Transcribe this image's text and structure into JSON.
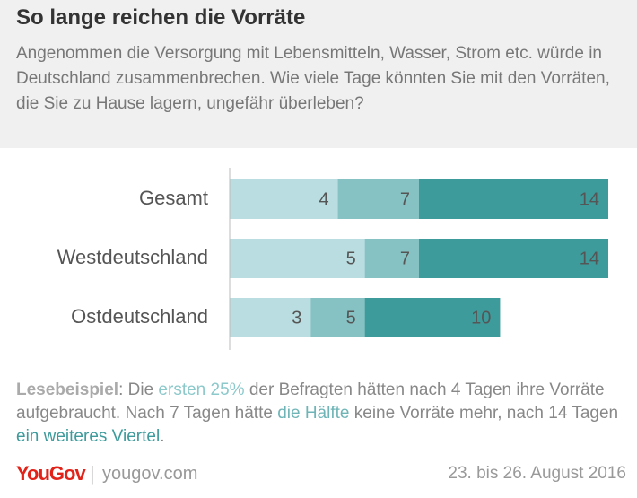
{
  "chart_data": {
    "type": "bar",
    "orientation": "horizontal",
    "overlap": true,
    "title": "So lange reichen die Vorräte",
    "subtitle": "Angenommen die Versorgung mit Lebensmitteln, Wasser, Strom etc. würde in Deutschland zusammenbrechen. Wie viele Tage könnten Sie mit den Vorräten, die Sie zu Hause lagern, ungefähr überleben?",
    "categories": [
      "Gesamt",
      "Westdeutschland",
      "Ostdeutschland"
    ],
    "series": [
      {
        "color": "#3e9b9c",
        "values": [
          14,
          14,
          10
        ]
      },
      {
        "color": "#86c2c4",
        "values": [
          7,
          7,
          5
        ]
      },
      {
        "color": "#b9dde0",
        "values": [
          4,
          5,
          3
        ]
      }
    ],
    "note": [
      "Lesebeispiel",
      ": Die ",
      "ersten 25%",
      " der Befragten hätten nach 4 Tagen ihre Vorräte aufgebraucht. Nach 7 Tagen hätte ",
      "die Hälfte",
      " keine Vorräte mehr, nach 14 Tagen ",
      "ein weiteres Viertel",
      "."
    ],
    "brand": "YouGov",
    "source": "yougov.com",
    "date": "23. bis 26. August 2016"
  }
}
